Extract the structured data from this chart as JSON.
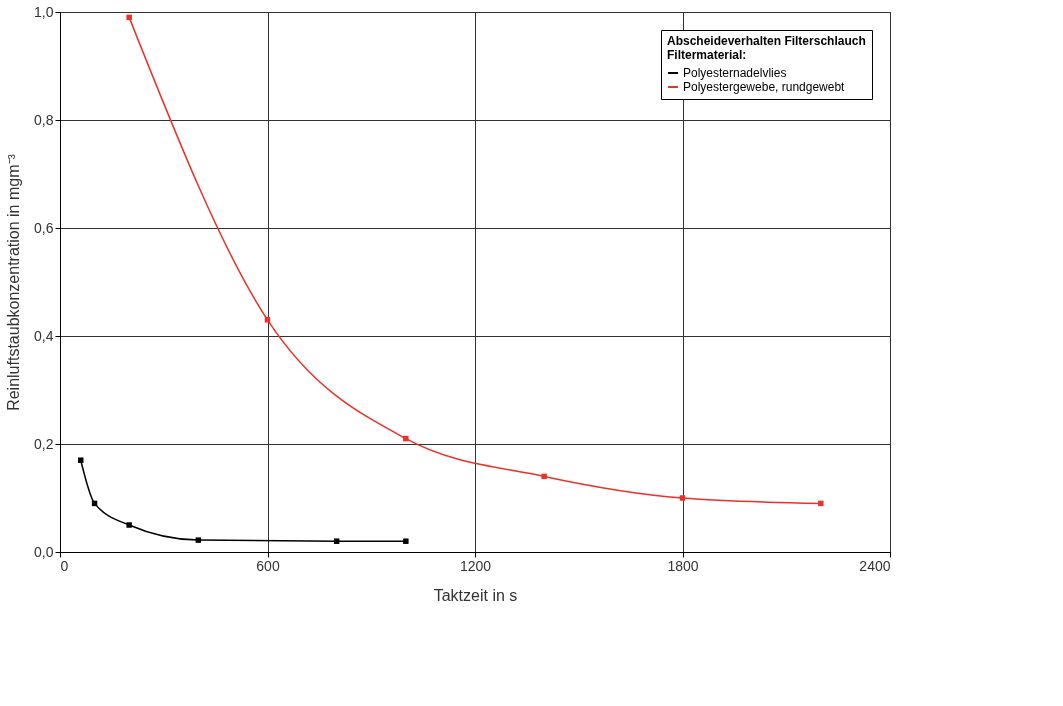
{
  "chart_data": {
    "type": "line",
    "xlabel": "Taktzeit in s",
    "ylabel": "Reinluftstaubkonzentration in mgm⁻³",
    "legend_title": "Abscheideverhalten Filterschlauch\nFiltermaterial:",
    "series": [
      {
        "name": "Polyesternadelvlies",
        "color": "#000000",
        "x": [
          60,
          100,
          200,
          400,
          800,
          1000
        ],
        "values": [
          0.17,
          0.09,
          0.05,
          0.022,
          0.02,
          0.02
        ]
      },
      {
        "name": "Polyestergewebe, rundgewebt",
        "color": "#e8322a",
        "x": [
          200,
          600,
          1000,
          1400,
          1800,
          2200
        ],
        "values": [
          0.99,
          0.43,
          0.21,
          0.14,
          0.1,
          0.09
        ]
      }
    ],
    "xlim": [
      0,
      2400
    ],
    "xticks": [
      0,
      600,
      1200,
      1800,
      2400
    ],
    "ylim": [
      0,
      1.0
    ],
    "yticks": [
      {
        "value": 0,
        "label": "0,0"
      },
      {
        "value": 0.2,
        "label": "0,2"
      },
      {
        "value": 0.4,
        "label": "0,4"
      },
      {
        "value": 0.6,
        "label": "0,6"
      },
      {
        "value": 0.8,
        "label": "0,8"
      },
      {
        "value": 1.0,
        "label": "1,0"
      }
    ],
    "grid": true,
    "legend": "top right",
    "marker": "square",
    "line_style": "solid"
  }
}
